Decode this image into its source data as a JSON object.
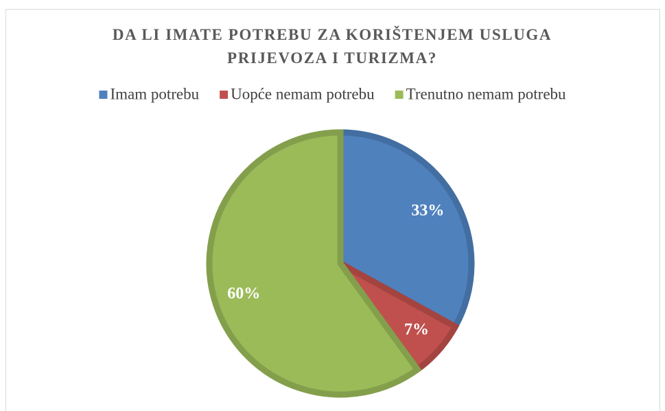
{
  "chart_data": {
    "type": "pie",
    "title": "DA LI IMATE POTREBU ZA KORIŠTENJEM USLUGA PRIJEVOZA I TURIZMA?",
    "categories": [
      "Imam potrebu",
      "Uopće nemam potrebu",
      "Trenutno nemam potrebu"
    ],
    "values": [
      33,
      7,
      60
    ],
    "value_labels": [
      "33%",
      "7%",
      "60%"
    ],
    "colors": [
      "#4f81bd",
      "#c0504d",
      "#9bbb59"
    ],
    "legend": "top"
  }
}
